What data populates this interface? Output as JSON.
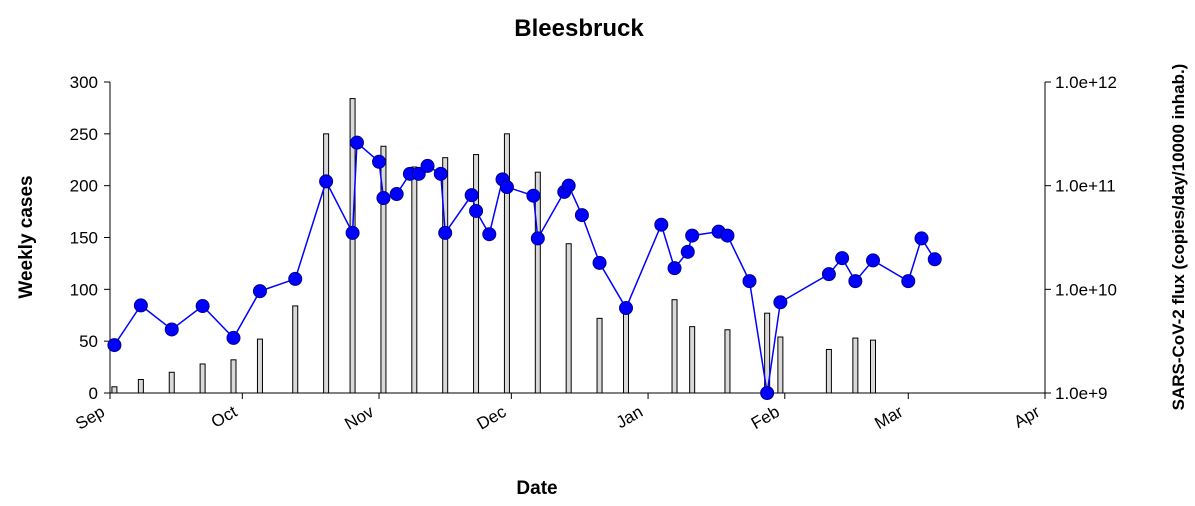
{
  "chart_data": {
    "type": "bar",
    "title": "Bleesbruck",
    "x_label": "Date",
    "y_label": "Weekly cases",
    "y2_label": "SARS-CoV-2 flux (copies/day/10000 inhab.)",
    "xlim": [
      0,
      212
    ],
    "xticks": [
      {
        "value": 0,
        "label": "Sep"
      },
      {
        "value": 30,
        "label": "Oct"
      },
      {
        "value": 61,
        "label": "Nov"
      },
      {
        "value": 91,
        "label": "Dec"
      },
      {
        "value": 122,
        "label": "Jan"
      },
      {
        "value": 153,
        "label": "Feb"
      },
      {
        "value": 181,
        "label": "Mar"
      },
      {
        "value": 212,
        "label": "Apr"
      }
    ],
    "ylim": [
      0,
      300
    ],
    "yticks": [
      0,
      50,
      100,
      150,
      200,
      250,
      300
    ],
    "y2lim": [
      1000000000.0,
      1000000000000.0
    ],
    "y2_log": true,
    "y2ticks": [
      {
        "value": 1000000000.0,
        "label": "1.0e+9"
      },
      {
        "value": 10000000000.0,
        "label": "1.0e+10"
      },
      {
        "value": 100000000000.0,
        "label": "1.0e+11"
      },
      {
        "value": 1000000000000.0,
        "label": "1.0e+12"
      }
    ],
    "series": [
      {
        "type": "bar",
        "color": "#d9d9d9",
        "x": [
          1,
          7,
          14,
          21,
          28,
          34,
          42,
          49,
          55,
          62,
          69,
          76,
          83,
          90,
          97,
          104,
          111,
          117,
          128,
          132,
          140,
          149,
          152,
          163,
          169,
          173
        ],
        "values": [
          6,
          13,
          20,
          28,
          32,
          52,
          84,
          250,
          284,
          238,
          218,
          227,
          230,
          250,
          213,
          144,
          72,
          80,
          90,
          64,
          61,
          77,
          54,
          42,
          53,
          51
        ]
      },
      {
        "type": "line",
        "axis": "y2",
        "color": "#0000ff",
        "x": [
          1,
          7,
          14,
          21,
          28,
          34,
          42,
          49,
          55,
          56,
          61,
          62,
          65,
          68,
          70,
          72,
          75,
          76,
          82,
          83,
          86,
          89,
          90,
          96,
          97,
          103,
          104,
          107,
          111,
          117,
          125,
          128,
          131,
          132,
          138,
          140,
          145,
          149,
          152,
          163,
          166,
          169,
          173,
          181,
          184,
          187
        ],
        "values": [
          2900000000.0,
          7000000000.0,
          4100000000.0,
          6900000000.0,
          3400000000.0,
          9600000000.0,
          12600000000.0,
          110000000000.0,
          35000000000.0,
          260000000000.0,
          170000000000.0,
          76000000000.0,
          83000000000.0,
          130000000000.0,
          130000000000.0,
          155000000000.0,
          130000000000.0,
          35000000000.0,
          81000000000.0,
          57000000000.0,
          34000000000.0,
          115000000000.0,
          97000000000.0,
          80000000000.0,
          31000000000.0,
          87000000000.0,
          100000000000.0,
          52000000000.0,
          18000000000.0,
          6600000000.0,
          42000000000.0,
          16000000000.0,
          23000000000.0,
          33000000000.0,
          36000000000.0,
          33000000000.0,
          12000000000.0,
          1000000000.0,
          7500000000.0,
          14000000000.0,
          20000000000.0,
          12000000000.0,
          19000000000.0,
          12000000000.0,
          31000000000.0,
          19500000000.0
        ]
      }
    ]
  }
}
